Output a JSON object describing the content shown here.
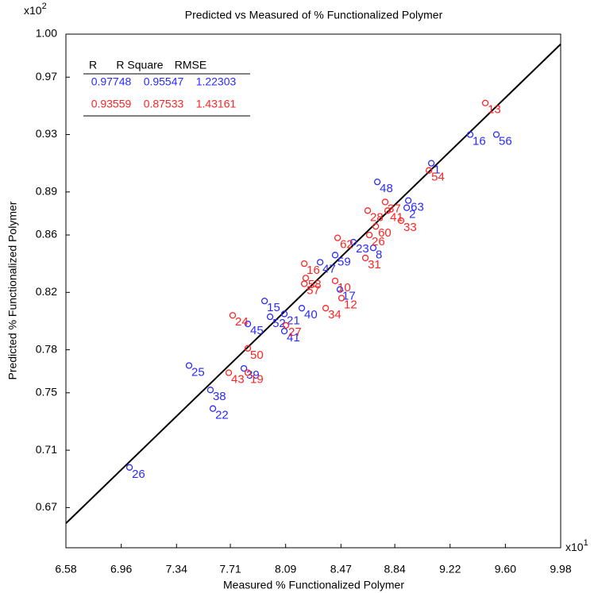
{
  "chart_data": {
    "type": "scatter",
    "title": "Predicted vs Measured of % Functionalized Polymer",
    "x_label": "Measured % Functionalized Polymer",
    "y_label": "Predicted % Functionalized Polymer",
    "x_scale": {
      "base": "x10",
      "exponent": "1"
    },
    "y_scale": {
      "base": "x10",
      "exponent": "2"
    },
    "xlim": [
      6.58,
      9.98
    ],
    "ylim": [
      0.642,
      1.0
    ],
    "xticks": [
      6.58,
      6.96,
      7.34,
      7.71,
      8.09,
      8.47,
      8.84,
      9.22,
      {
        "value": 9.6,
        "label": "9.60"
      },
      9.98
    ],
    "yticks": [
      0.67,
      0.71,
      0.75,
      0.78,
      0.82,
      0.86,
      0.89,
      0.93,
      0.97,
      {
        "value": 1.0,
        "label": "1.00"
      }
    ],
    "fit_line": {
      "color": "#000000",
      "x": [
        6.58,
        9.98
      ],
      "y": [
        0.659,
        0.993
      ]
    },
    "stats_table": {
      "header": [
        "R",
        "R Square",
        "RMSE"
      ],
      "rows": [
        {
          "color": "#2b2bff",
          "cells": [
            0.97748,
            0.95547,
            1.22303
          ]
        },
        {
          "color": "#ff2424",
          "cells": [
            0.93559,
            0.87533,
            1.43161
          ]
        }
      ]
    },
    "series": [
      {
        "color": "#2b2bff",
        "labels": [
          "26",
          "25",
          "38",
          "22",
          "39",
          "45",
          "15",
          "52",
          "21",
          "41",
          "40",
          "47",
          "59",
          "17",
          "23",
          "8",
          "48",
          "63",
          "2",
          "1",
          "16",
          "56"
        ],
        "x": [
          7.017,
          7.426,
          7.573,
          7.59,
          7.803,
          7.83,
          7.945,
          7.983,
          8.081,
          8.081,
          8.201,
          8.327,
          8.43,
          8.463,
          8.556,
          8.692,
          8.72,
          8.933,
          8.922,
          9.091,
          9.358,
          9.538
        ],
        "y": [
          0.698,
          0.769,
          0.752,
          0.739,
          0.767,
          0.798,
          0.814,
          0.803,
          0.805,
          0.793,
          0.809,
          0.841,
          0.846,
          0.822,
          0.855,
          0.851,
          0.897,
          0.884,
          0.879,
          0.91,
          0.93,
          0.93
        ]
      },
      {
        "color": "#ff2424",
        "labels": [
          "43",
          "19",
          "24",
          "50",
          "27",
          "34",
          "12",
          "57",
          "58",
          "16",
          "10",
          "31",
          "62",
          "26",
          "60",
          "28",
          "41",
          "37",
          "33",
          "54",
          "13"
        ],
        "x": [
          7.699,
          7.83,
          7.726,
          7.83,
          8.092,
          8.365,
          8.474,
          8.218,
          8.228,
          8.218,
          8.43,
          8.638,
          8.447,
          8.665,
          8.709,
          8.654,
          8.791,
          8.774,
          8.883,
          9.075,
          9.462
        ],
        "y": [
          0.764,
          0.764,
          0.804,
          0.781,
          0.797,
          0.809,
          0.816,
          0.826,
          0.83,
          0.84,
          0.828,
          0.844,
          0.858,
          0.86,
          0.866,
          0.877,
          0.877,
          0.883,
          0.87,
          0.905,
          0.952
        ]
      }
    ]
  }
}
